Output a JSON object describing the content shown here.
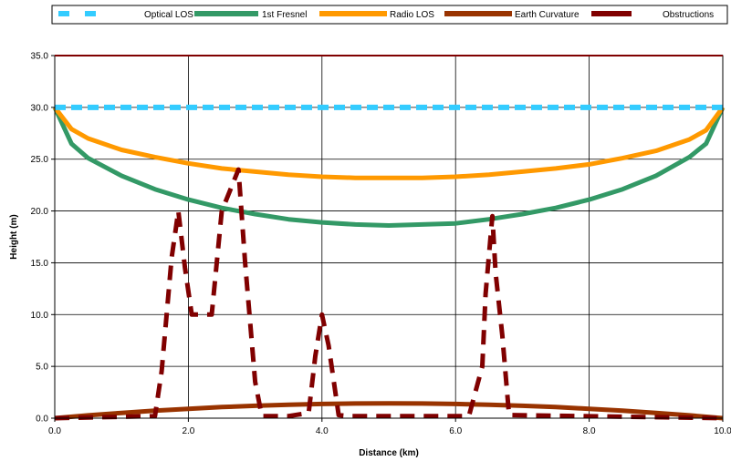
{
  "chart_data": {
    "type": "line",
    "xlabel": "Distance (km)",
    "ylabel": "Height (m)",
    "xlim": [
      0,
      10
    ],
    "ylim": [
      0,
      35
    ],
    "xticks": [
      0,
      2,
      4,
      6,
      8,
      10
    ],
    "xtick_labels": [
      "0.0",
      "2.0",
      "4.0",
      "6.0",
      "8.0",
      "10.0"
    ],
    "yticks": [
      0,
      5,
      10,
      15,
      20,
      25,
      30,
      35
    ],
    "ytick_labels": [
      "0.0",
      "5.0",
      "10.0",
      "15.0",
      "20.0",
      "25.0",
      "30.0",
      "35.0"
    ],
    "grid": true,
    "legend_position": "top",
    "series": [
      {
        "name": "Optical LOS",
        "color": "#33ccff",
        "style": "dashed",
        "x": [
          0,
          10
        ],
        "y": [
          30.0,
          30.0
        ]
      },
      {
        "name": "1st Fresnel",
        "color": "#339966",
        "style": "solid",
        "x": [
          0,
          0.25,
          0.5,
          1,
          1.5,
          2,
          2.5,
          3,
          3.5,
          4,
          4.5,
          5,
          5.5,
          6,
          6.5,
          7,
          7.5,
          8,
          8.5,
          9,
          9.5,
          9.75,
          10
        ],
        "y": [
          30.0,
          26.5,
          25.1,
          23.4,
          22.1,
          21.1,
          20.3,
          19.7,
          19.2,
          18.9,
          18.7,
          18.6,
          18.7,
          18.8,
          19.2,
          19.7,
          20.3,
          21.1,
          22.1,
          23.4,
          25.2,
          26.5,
          30.0
        ]
      },
      {
        "name": "Radio LOS",
        "color": "#ff9900",
        "style": "solid",
        "x": [
          0,
          0.25,
          0.5,
          1,
          1.5,
          2,
          2.5,
          3,
          3.5,
          4,
          4.5,
          5,
          5.5,
          6,
          6.5,
          7,
          7.5,
          8,
          8.5,
          9,
          9.5,
          9.75,
          10
        ],
        "y": [
          30.0,
          27.9,
          27.0,
          25.9,
          25.2,
          24.6,
          24.1,
          23.8,
          23.5,
          23.3,
          23.2,
          23.2,
          23.2,
          23.3,
          23.5,
          23.8,
          24.1,
          24.5,
          25.1,
          25.8,
          26.9,
          27.8,
          30.0
        ]
      },
      {
        "name": "Earth Curvature",
        "color": "#993300",
        "style": "solid",
        "x": [
          0,
          0.5,
          1,
          1.5,
          2,
          2.5,
          3,
          3.5,
          4,
          4.5,
          5,
          5.5,
          6,
          6.5,
          7,
          7.5,
          8,
          8.5,
          9,
          9.5,
          10
        ],
        "y": [
          0.0,
          0.27,
          0.51,
          0.72,
          0.91,
          1.07,
          1.2,
          1.3,
          1.37,
          1.42,
          1.43,
          1.42,
          1.37,
          1.3,
          1.2,
          1.07,
          0.91,
          0.72,
          0.51,
          0.27,
          0.0
        ]
      },
      {
        "name": "Obstructions",
        "color": "#800000",
        "style": "dashed",
        "x": [
          0,
          1.5,
          1.6,
          1.75,
          1.85,
          1.95,
          2.05,
          2.15,
          2.35,
          2.5,
          2.75,
          2.85,
          3.0,
          3.1,
          3.5,
          3.8,
          3.9,
          4.0,
          4.1,
          4.25,
          4.4,
          5.0,
          6.2,
          6.4,
          6.45,
          6.55,
          6.6,
          6.7,
          6.8,
          10.0
        ],
        "y": [
          0.0,
          0.2,
          4.5,
          15.5,
          20.0,
          14.5,
          10.0,
          10.0,
          10.0,
          20.0,
          24.0,
          15.0,
          3.5,
          0.2,
          0.2,
          0.5,
          6.0,
          10.0,
          7.0,
          0.3,
          0.2,
          0.2,
          0.2,
          5.0,
          12.0,
          19.5,
          14.0,
          8.0,
          0.3,
          0.0
        ]
      }
    ]
  }
}
